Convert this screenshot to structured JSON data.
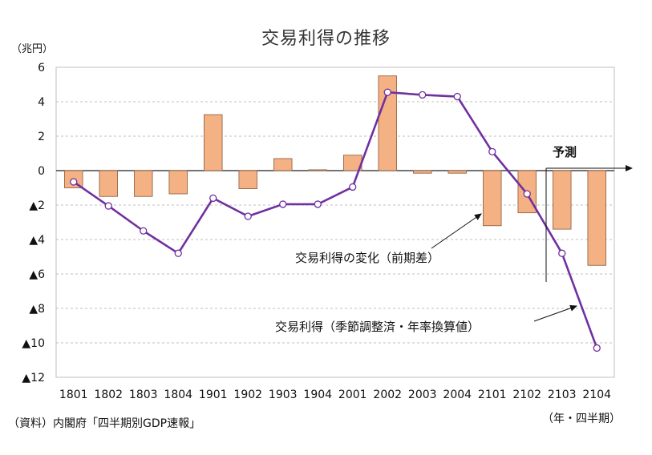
{
  "chart_data": {
    "type": "bar",
    "title": "交易利得の推移",
    "ylabel": "（兆円）",
    "xlabel": "（年・四半期）",
    "source": "（資料）内閣府「四半期別GDP速報」",
    "categories": [
      "1801",
      "1802",
      "1803",
      "1804",
      "1901",
      "1902",
      "1903",
      "1904",
      "2001",
      "2002",
      "2003",
      "2004",
      "2101",
      "2102",
      "2103",
      "2104"
    ],
    "ylim": [
      -12,
      6
    ],
    "yticks": [
      6,
      4,
      2,
      0,
      -2,
      -4,
      -6,
      -8,
      -10,
      -12
    ],
    "ytick_labels": [
      "6",
      "4",
      "2",
      "0",
      "▲2",
      "▲4",
      "▲6",
      "▲8",
      "▲10",
      "▲12"
    ],
    "grid": true,
    "series": [
      {
        "name": "交易利得の変化（前期差）",
        "type": "bar",
        "color": "#f4b183",
        "values": [
          -1.0,
          -1.5,
          -1.5,
          -1.35,
          3.25,
          -1.05,
          0.7,
          0.05,
          0.9,
          5.5,
          -0.15,
          -0.15,
          -3.2,
          -2.45,
          -3.4,
          -5.5
        ]
      },
      {
        "name": "交易利得（季節調整済・年率換算値）",
        "type": "line",
        "color": "#7030a0",
        "values": [
          -0.65,
          -2.05,
          -3.5,
          -4.8,
          -1.6,
          -2.65,
          -1.95,
          -1.95,
          -0.95,
          4.55,
          4.4,
          4.3,
          1.1,
          -1.35,
          -4.8,
          -10.3
        ]
      }
    ],
    "annotations": {
      "forecast": "予測",
      "bar_label": "交易利得の変化（前期差）",
      "line_label": "交易利得（季節調整済・年率換算値）"
    }
  }
}
